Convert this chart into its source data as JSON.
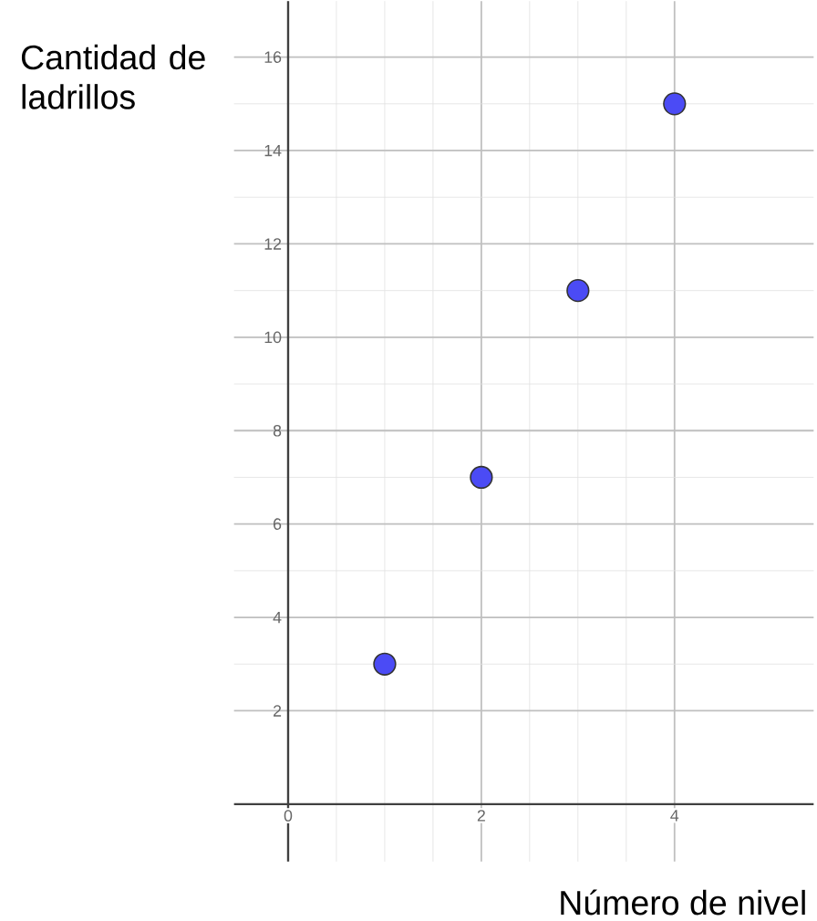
{
  "chart_data": {
    "type": "scatter",
    "xlabel": "Número de nivel",
    "annotations": [
      "Cantidad de ladrillos"
    ],
    "x": [
      1,
      2,
      3,
      4
    ],
    "values": [
      3,
      7,
      11,
      15
    ],
    "color": "#4b4bf5",
    "marker": "circle",
    "xlim": [
      -0.56,
      5.44
    ],
    "ylim": [
      -1.23,
      17.2
    ],
    "xticks": [
      0,
      2,
      4
    ],
    "yticks": [
      2,
      4,
      6,
      8,
      10,
      12,
      14,
      16
    ],
    "grid": true
  }
}
